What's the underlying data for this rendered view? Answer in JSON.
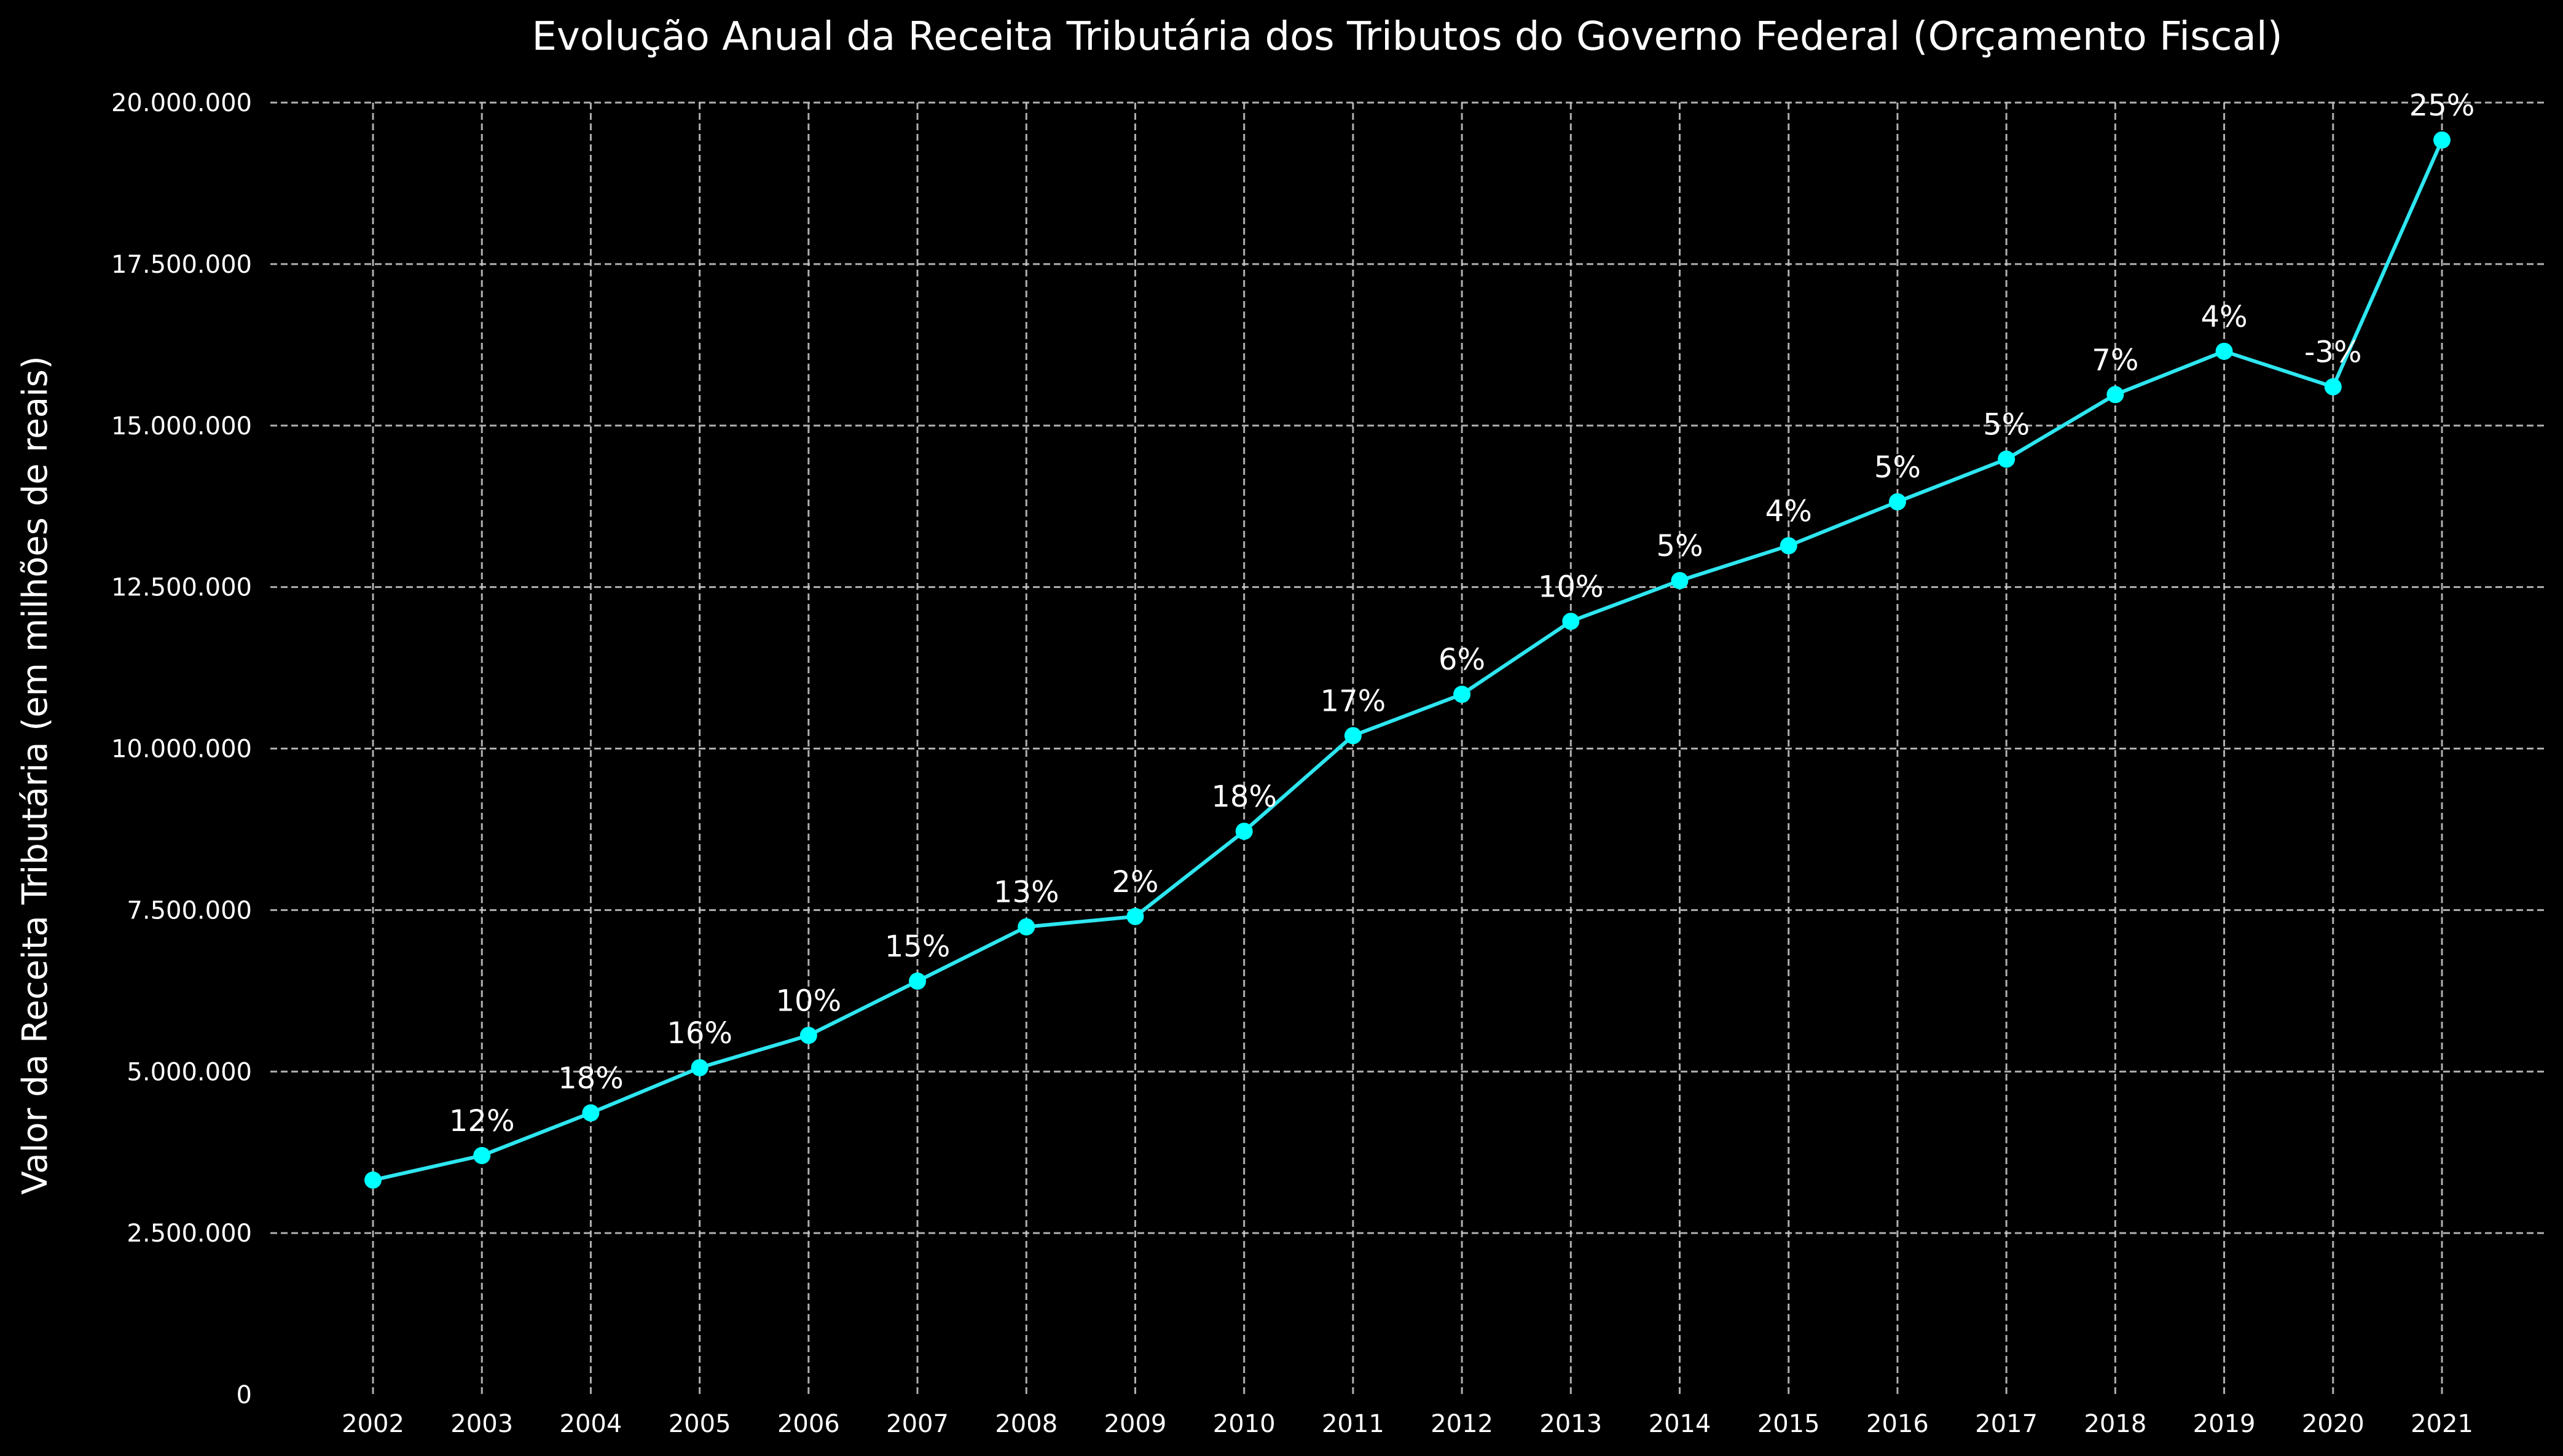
{
  "colors": {
    "background": "#000000",
    "series": "#2ee6f0",
    "marker": "#00ffff",
    "text": "#ffffff",
    "grid": "#cfcfcf"
  },
  "chart_data": {
    "type": "line",
    "title": "Evolução Anual da Receita Tributária dos Tributos do Governo Federal (Orçamento Fiscal)",
    "xlabel": "",
    "ylabel": "Valor da Receita Tributária (em milhões de reais)",
    "grid": true,
    "ylim": [
      0,
      20000000
    ],
    "y_ticks": [
      0,
      2500000,
      5000000,
      7500000,
      10000000,
      12500000,
      15000000,
      17500000,
      20000000
    ],
    "y_tick_labels": [
      "0",
      "2.500.000",
      "5.000.000",
      "7.500.000",
      "10.000.000",
      "12.500.000",
      "15.000.000",
      "17.500.000",
      "20.000.000"
    ],
    "categories": [
      "2002",
      "2003",
      "2004",
      "2005",
      "2006",
      "2007",
      "2008",
      "2009",
      "2010",
      "2011",
      "2012",
      "2013",
      "2014",
      "2015",
      "2016",
      "2017",
      "2018",
      "2019",
      "2020",
      "2021"
    ],
    "values": [
      3320000,
      3700000,
      4360000,
      5060000,
      5560000,
      6400000,
      7240000,
      7400000,
      8720000,
      10200000,
      10840000,
      11970000,
      12600000,
      13140000,
      13820000,
      14480000,
      15480000,
      16150000,
      15600000,
      19420000
    ],
    "annotations": [
      "",
      "12%",
      "18%",
      "16%",
      "10%",
      "15%",
      "13%",
      "2%",
      "18%",
      "17%",
      "6%",
      "10%",
      "5%",
      "4%",
      "5%",
      "5%",
      "7%",
      "4%",
      "-3%",
      "25%"
    ]
  }
}
